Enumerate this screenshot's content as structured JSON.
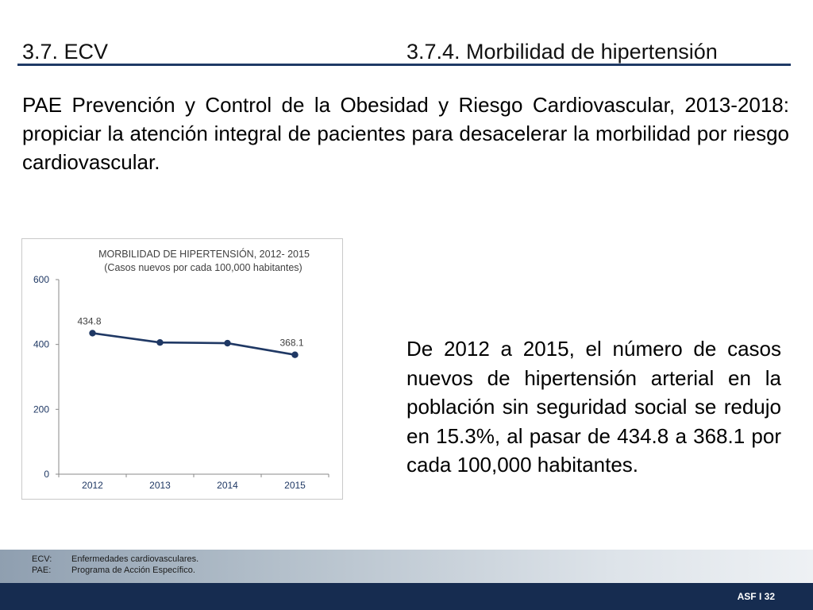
{
  "header": {
    "section": "3.7. ECV",
    "subsection": "3.7.4. Morbilidad de hipertensión"
  },
  "intro_text": "PAE Prevención y Control de la Obesidad y Riesgo Cardiovascular, 2013-2018: propiciar la atención integral de pacientes para desacelerar la morbilidad por riesgo cardiovascular.",
  "summary_text": "De 2012 a 2015, el número de casos nuevos de hipertensión arterial en la población sin seguridad social se redujo en 15.3%, al pasar de 434.8 a 368.1 por cada 100,000 habitan­tes.",
  "footnotes": [
    {
      "term": "ECV:",
      "definition": "Enfermedades cardiovasculares."
    },
    {
      "term": "PAE:",
      "definition": "Programa de Acción Específico."
    }
  ],
  "page_label": "ASF I 32",
  "colors": {
    "line": "#1f3864",
    "chart_title": "#404040",
    "header_rule": "#1f3a66",
    "bottom_bar": "#162c50"
  },
  "chart_data": {
    "type": "line",
    "title": "MORBILIDAD  DE HIPERTENSIÓN, 2012- 2015",
    "subtitle": "(Casos nuevos por cada 100,000 habitantes)",
    "categories": [
      "2012",
      "2013",
      "2014",
      "2015"
    ],
    "series": [
      {
        "values": [
          434.8,
          406,
          404,
          368.1
        ]
      }
    ],
    "data_labels": [
      {
        "index": 0,
        "text": "434.8"
      },
      {
        "index": 3,
        "text": "368.1"
      }
    ],
    "ylim": [
      0,
      600
    ],
    "yticks": [
      0,
      200,
      400,
      600
    ],
    "xlabel": "",
    "ylabel": "",
    "grid": false,
    "legend": "none"
  }
}
